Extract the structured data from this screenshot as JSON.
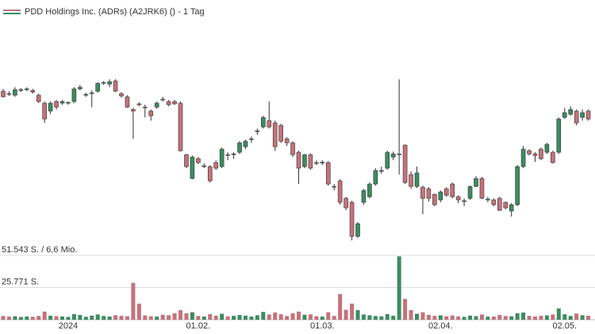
{
  "chart_data": {
    "type": "candlestick",
    "title": "PDD Holdings Inc. (ADRs) (A2JRK6) () - 1 Tag",
    "categories": [
      null,
      null,
      null,
      null,
      null,
      null,
      null,
      null,
      null,
      null,
      null,
      "2024",
      null,
      null,
      null,
      null,
      null,
      null,
      null,
      null,
      null,
      null,
      null,
      null,
      null,
      null,
      null,
      null,
      null,
      null,
      null,
      null,
      null,
      "01.02.",
      null,
      null,
      null,
      null,
      null,
      null,
      null,
      null,
      null,
      null,
      null,
      null,
      null,
      null,
      null,
      null,
      null,
      null,
      null,
      null,
      "01.03.",
      null,
      null,
      null,
      null,
      null,
      null,
      null,
      null,
      null,
      null,
      null,
      null,
      null,
      null,
      null,
      null,
      null,
      null,
      null,
      "02.04.",
      null,
      null,
      null,
      null,
      null,
      null,
      null,
      null,
      null,
      null,
      null,
      null,
      null,
      null,
      null,
      null,
      null,
      null,
      null,
      null,
      "02.05.",
      null,
      null,
      null,
      null
    ],
    "open": [
      142.5,
      141,
      140,
      143,
      143.5,
      143,
      140,
      135,
      130,
      136,
      135,
      135,
      136,
      144,
      140,
      141,
      142.5,
      147.5,
      147,
      149,
      141,
      139,
      131,
      134.5,
      132.5,
      130,
      132.5,
      137.5,
      136,
      136,
      135,
      102.5,
      87.5,
      100,
      95,
      95,
      97.5,
      95,
      102.5,
      102.5,
      104,
      107.5,
      112,
      117,
      120,
      124,
      122.5,
      121,
      112.5,
      110,
      104,
      95,
      102.5,
      97.5,
      97.5,
      97.5,
      82.5,
      86,
      75,
      72.5,
      51,
      72.5,
      76,
      84,
      92,
      94,
      101,
      102.5,
      108.5,
      90,
      82.5,
      82,
      81,
      77.5,
      74,
      81,
      84,
      76,
      73,
      75,
      82.5,
      87.5,
      74,
      74,
      75,
      72.5,
      67,
      71,
      95,
      105,
      103,
      106,
      104,
      104,
      104,
      126,
      128,
      130,
      126,
      130
    ],
    "high": [
      144,
      142.5,
      145,
      144.5,
      145,
      144,
      141,
      136,
      136,
      137,
      137,
      136,
      145,
      146.5,
      141.5,
      143,
      148,
      149,
      150,
      150,
      142,
      140,
      132,
      135.5,
      134,
      131,
      136,
      139,
      137,
      137,
      136,
      103,
      102,
      101,
      97,
      96,
      99,
      107,
      104,
      104,
      111,
      112,
      114,
      119,
      127,
      136,
      124,
      122,
      113.5,
      111,
      105,
      103,
      103.5,
      99,
      99,
      98.5,
      84,
      87,
      76,
      73.5,
      60,
      81,
      85,
      94,
      95,
      105,
      104.5,
      150,
      109,
      92,
      95,
      83,
      82,
      78,
      80,
      82,
      85,
      77,
      75,
      83,
      89,
      88.5,
      76,
      75,
      76,
      73,
      72,
      96,
      108,
      106,
      104,
      107,
      110,
      105,
      126,
      132,
      133,
      131,
      131,
      131
    ],
    "low": [
      138.5,
      139.5,
      139,
      142,
      142.5,
      141,
      135,
      122.5,
      128,
      131,
      134,
      134,
      135,
      143,
      139,
      132.5,
      141.5,
      146.5,
      145,
      142,
      138.5,
      132,
      112.5,
      133,
      126,
      124,
      131.5,
      136,
      133,
      134,
      104.5,
      94,
      87,
      96.5,
      94,
      85,
      93,
      94,
      99,
      100,
      103,
      106,
      110,
      115,
      119,
      119,
      105,
      110,
      108,
      101,
      84,
      94,
      93,
      96,
      96,
      83,
      80,
      71,
      67.5,
      48.5,
      50,
      71,
      75,
      83,
      90.5,
      93,
      99,
      90,
      84,
      81,
      81.5,
      65,
      73,
      70,
      72.5,
      76,
      75,
      72,
      70,
      74,
      82,
      74.5,
      72.5,
      70,
      67,
      68,
      63.5,
      70,
      94,
      102,
      98,
      99,
      103,
      97,
      103,
      125,
      127,
      121,
      124,
      124
    ],
    "close": [
      139,
      140.5,
      143.5,
      143.5,
      144,
      142,
      136,
      125,
      135,
      132.5,
      136,
      135.5,
      144,
      145,
      140.5,
      141.5,
      147.5,
      148,
      148.5,
      142.5,
      139.5,
      132.5,
      130,
      134,
      132,
      127,
      135,
      137,
      134,
      134.5,
      105,
      95,
      101,
      97.5,
      95.5,
      86,
      94,
      106,
      102,
      103,
      110,
      111,
      112.5,
      117.5,
      126,
      120,
      107.5,
      111,
      110,
      102.5,
      94,
      102.5,
      94,
      97,
      97.8,
      84,
      82,
      72.5,
      69,
      51,
      59,
      80,
      84,
      92.5,
      92.5,
      104,
      103,
      103,
      85,
      82.5,
      91,
      75,
      75,
      71,
      79,
      77,
      76,
      74,
      73.5,
      82.5,
      87.5,
      75,
      74.5,
      71,
      67.5,
      69,
      71,
      95,
      106,
      103,
      102,
      100,
      109,
      97.5,
      125,
      129,
      131,
      122.5,
      129,
      125
    ],
    "volume": [
      3000,
      2500,
      2800,
      2200,
      2600,
      2400,
      3000,
      6500,
      3200,
      2900,
      2600,
      2300,
      4500,
      3800,
      2400,
      3300,
      4200,
      3000,
      2600,
      3600,
      3100,
      2800,
      29600,
      12900,
      3500,
      2800,
      2500,
      4000,
      3600,
      5200,
      7700,
      5200,
      6000,
      3000,
      2600,
      4500,
      3200,
      4800,
      2700,
      3100,
      3800,
      3300,
      2500,
      3600,
      6300,
      4200,
      5800,
      4400,
      3000,
      5100,
      6500,
      4000,
      4300,
      2800,
      2500,
      6000,
      3000,
      20600,
      8000,
      12900,
      7700,
      4200,
      3600,
      3000,
      2700,
      4500,
      3200,
      50800,
      16700,
      7700,
      4800,
      6000,
      3900,
      3100,
      3500,
      2800,
      3400,
      2600,
      2300,
      3300,
      2900,
      4200,
      2500,
      2600,
      3800,
      3000,
      2700,
      5200,
      5800,
      3100,
      2600,
      3200,
      3500,
      4200,
      9000,
      4400,
      3000,
      5000,
      3600,
      3200
    ],
    "ylim": [
      40,
      200
    ],
    "volume_ylim": [
      0,
      51543
    ],
    "volume_yticks": [
      {
        "value": 51543,
        "label": "51.543 S. / 6,6 Mio."
      },
      {
        "value": 25771,
        "label": "25.771 S."
      }
    ],
    "up_color": "#3d8b62",
    "down_color": "#c4727b"
  }
}
